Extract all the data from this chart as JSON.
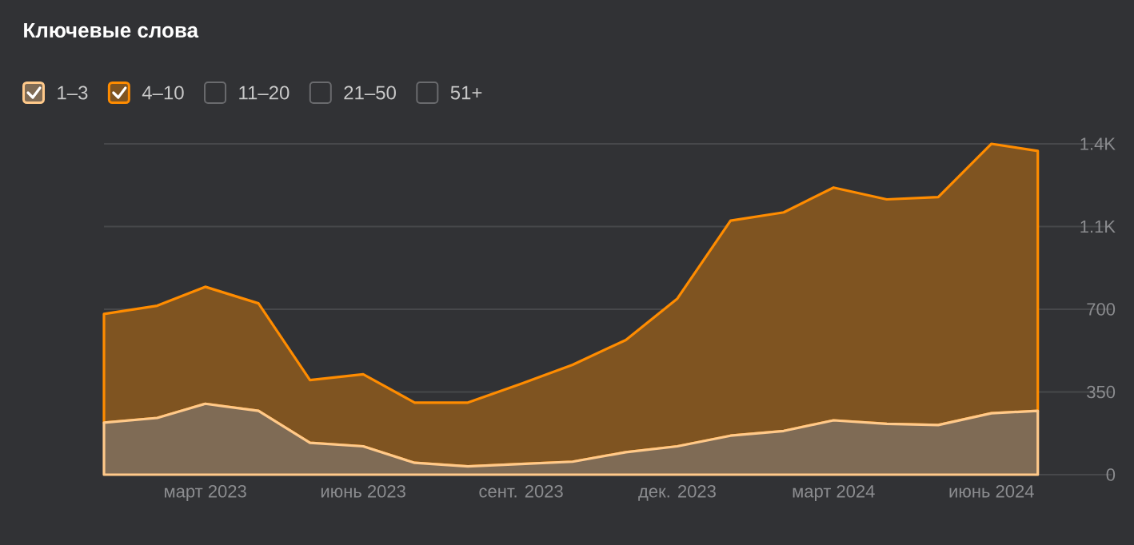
{
  "chart_data": {
    "type": "area",
    "title": "Ключевые слова",
    "stacked": true,
    "grid": "y",
    "legend": "top left",
    "x": [
      "2023-01",
      "2023-02",
      "2023-03",
      "2023-04",
      "2023-05",
      "2023-06",
      "2023-07",
      "2023-08",
      "2023-09",
      "2023-10",
      "2023-11",
      "2023-12",
      "2024-01",
      "2024-02",
      "2024-03",
      "2024-04",
      "2024-05",
      "2024-06",
      "2024-06-28"
    ],
    "xlim": [
      "2023-01-01",
      "2024-08-10"
    ],
    "xticks": [
      {
        "value": "2023-03-01",
        "label": "март 2023"
      },
      {
        "value": "2023-06-01",
        "label": "июнь 2023"
      },
      {
        "value": "2023-09-01",
        "label": "сент. 2023"
      },
      {
        "value": "2023-12-01",
        "label": "дек. 2023"
      },
      {
        "value": "2024-03-01",
        "label": "март 2024"
      },
      {
        "value": "2024-06-01",
        "label": "июнь 2024"
      }
    ],
    "ylim": [
      0,
      1400
    ],
    "yticks": [
      0,
      350,
      700,
      {
        "value": 1050,
        "label": "1.1K"
      },
      {
        "value": 1400,
        "label": "1.4K"
      }
    ],
    "series": [
      {
        "name": "1–3",
        "color": "#ffc98a",
        "values": [
          220,
          240,
          300,
          270,
          135,
          120,
          50,
          35,
          45,
          55,
          95,
          120,
          165,
          185,
          230,
          215,
          210,
          260,
          270
        ]
      },
      {
        "name": "4–10",
        "color": "#ff8c00",
        "values": [
          460,
          475,
          495,
          455,
          265,
          305,
          255,
          270,
          340,
          410,
          475,
          625,
          910,
          925,
          985,
          950,
          965,
          1140,
          1100
        ]
      },
      {
        "name": "11–20",
        "values": [
          null,
          null,
          null,
          null,
          null,
          null,
          null,
          null,
          null,
          null,
          null,
          null,
          null,
          null,
          null,
          null,
          null,
          null,
          null
        ]
      },
      {
        "name": "21–50",
        "values": [
          null,
          null,
          null,
          null,
          null,
          null,
          null,
          null,
          null,
          null,
          null,
          null,
          null,
          null,
          null,
          null,
          null,
          null,
          null
        ]
      },
      {
        "name": "51+",
        "values": [
          null,
          null,
          null,
          null,
          null,
          null,
          null,
          null,
          null,
          null,
          null,
          null,
          null,
          null,
          null,
          null,
          null,
          null,
          null
        ]
      }
    ]
  }
}
